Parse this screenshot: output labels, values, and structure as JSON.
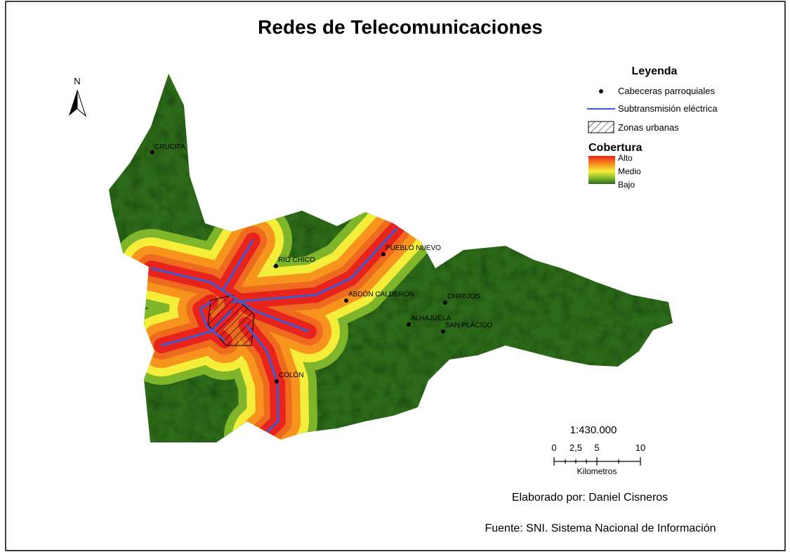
{
  "title": "Redes de Telecomunicaciones",
  "north_label": "N",
  "legend": {
    "title": "Leyenda",
    "items": [
      "Cabeceras parroquiales",
      "Subtransmisión eléctrica",
      "Zonas urbanas"
    ],
    "coverage_title": "Cobertura",
    "coverage_levels": [
      "Alto",
      "Medio",
      "Bajo"
    ]
  },
  "places": [
    "CRUCITA",
    "RÍO CHICO",
    "PUEBLO NUEVO",
    "ABDÓN CALDERÓN",
    "CHIRIJOS",
    "ALHAJUELA",
    "SAN PLÁCIDO",
    "COLÓN"
  ],
  "scale": {
    "ratio": "1:430.000",
    "ticks": [
      "0",
      "2,5",
      "5",
      "10"
    ],
    "unit": "Kilometros"
  },
  "credits": {
    "author": "Elaborado por: Daniel Cisneros",
    "source": "Fuente: SNI. Sistema Nacional de Información"
  }
}
